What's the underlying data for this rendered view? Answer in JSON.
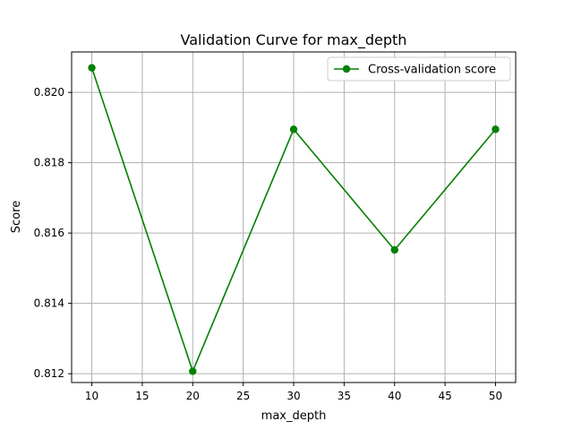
{
  "chart_data": {
    "type": "line",
    "title": "Validation Curve for max_depth",
    "xlabel": "max_depth",
    "ylabel": "Score",
    "x": [
      10,
      20,
      30,
      40,
      50
    ],
    "series": [
      {
        "name": "Cross-validation score",
        "values": [
          0.8207,
          0.81207,
          0.81895,
          0.81552,
          0.81895
        ],
        "color": "#008000",
        "marker": "circle"
      }
    ],
    "xlim": [
      8,
      52
    ],
    "ylim": [
      0.81175,
      0.82115
    ],
    "xticks": [
      10,
      15,
      20,
      25,
      30,
      35,
      40,
      45,
      50
    ],
    "yticks": [
      0.812,
      0.814,
      0.816,
      0.818,
      0.82
    ],
    "xtick_labels": [
      "10",
      "15",
      "20",
      "25",
      "30",
      "35",
      "40",
      "45",
      "50"
    ],
    "ytick_labels": [
      "0.812",
      "0.814",
      "0.816",
      "0.818",
      "0.820"
    ],
    "grid": true,
    "legend_position": "top-right"
  }
}
